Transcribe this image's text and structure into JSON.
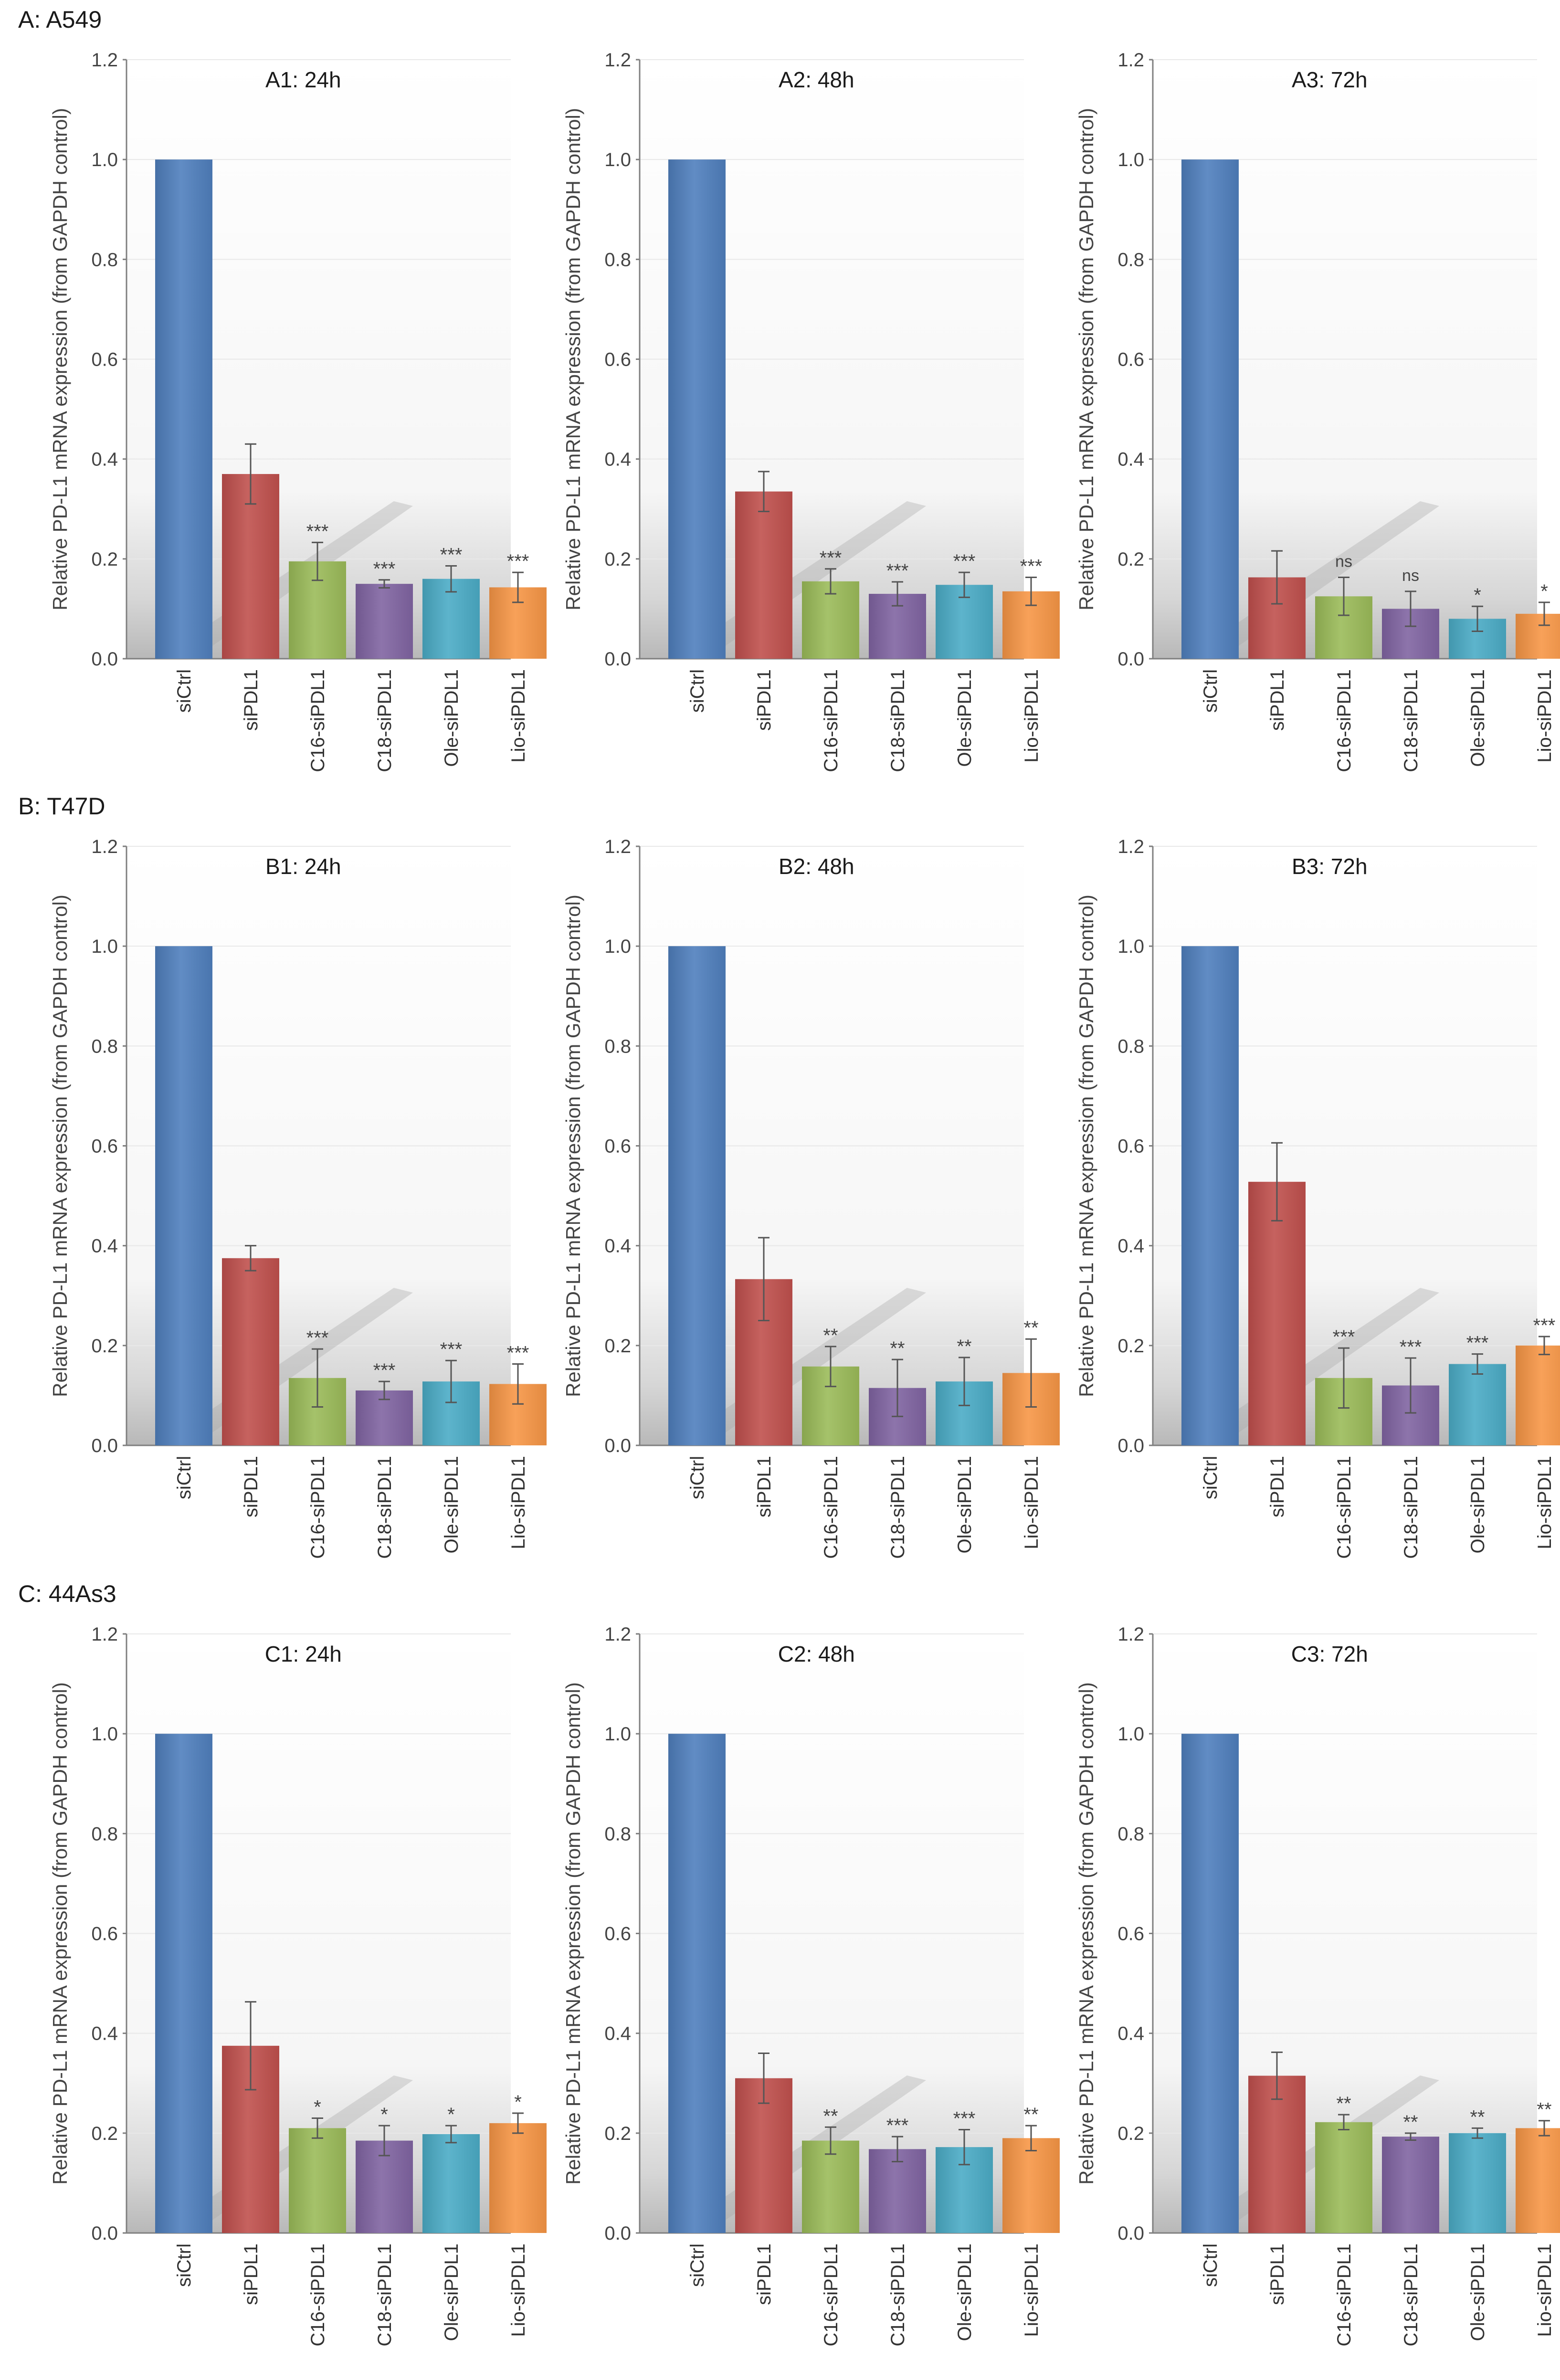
{
  "section_labels": [
    "A: A549",
    "B: T47D",
    "C: 44As3"
  ],
  "colors": {
    "siCtrl": "#4f7fbd",
    "siPDL1": "#c0504d",
    "C16-siPDL1": "#9bbb59",
    "C18-siPDL1": "#8064a2",
    "Ole-siPDL1": "#4bacc6",
    "Lio-siPDL1": "#f79646"
  },
  "chart_data": [
    {
      "type": "bar",
      "title": "A1: 24h",
      "ylabel": "Relative PD-L1 mRNA expression  (from GAPDH control)",
      "ylim": [
        0,
        1.2
      ],
      "yticks": [
        "0.0",
        "0.2",
        "0.4",
        "0.6",
        "0.8",
        "1.0",
        "1.2"
      ],
      "categories": [
        "siCtrl",
        "siPDL1",
        "C16-siPDL1",
        "C18-siPDL1",
        "Ole-siPDL1",
        "Lio-siPDL1"
      ],
      "values": [
        1.0,
        0.37,
        0.195,
        0.15,
        0.16,
        0.143
      ],
      "errors": [
        0,
        0.06,
        0.038,
        0.008,
        0.026,
        0.03
      ],
      "significance": [
        "",
        "",
        "***",
        "***",
        "***",
        "***"
      ]
    },
    {
      "type": "bar",
      "title": "A2: 48h",
      "ylabel": "Relative PD-L1 mRNA expression  (from GAPDH control)",
      "ylim": [
        0,
        1.2
      ],
      "yticks": [
        "0.0",
        "0.2",
        "0.4",
        "0.6",
        "0.8",
        "1.0",
        "1.2"
      ],
      "categories": [
        "siCtrl",
        "siPDL1",
        "C16-siPDL1",
        "C18-siPDL1",
        "Ole-siPDL1",
        "Lio-siPDL1"
      ],
      "values": [
        1.0,
        0.335,
        0.155,
        0.13,
        0.148,
        0.135
      ],
      "errors": [
        0,
        0.04,
        0.025,
        0.024,
        0.025,
        0.028
      ],
      "significance": [
        "",
        "",
        "***",
        "***",
        "***",
        "***"
      ]
    },
    {
      "type": "bar",
      "title": "A3: 72h",
      "ylabel": "Relative PD-L1 mRNA expression  (from GAPDH control)",
      "ylim": [
        0,
        1.2
      ],
      "yticks": [
        "0.0",
        "0.2",
        "0.4",
        "0.6",
        "0.8",
        "1.0",
        "1.2"
      ],
      "categories": [
        "siCtrl",
        "siPDL1",
        "C16-siPDL1",
        "C18-siPDL1",
        "Ole-siPDL1",
        "Lio-siPDL1"
      ],
      "values": [
        1.0,
        0.163,
        0.125,
        0.1,
        0.08,
        0.09
      ],
      "errors": [
        0,
        0.053,
        0.038,
        0.035,
        0.025,
        0.023
      ],
      "significance": [
        "",
        "",
        "ns",
        "ns",
        "*",
        "*"
      ]
    },
    {
      "type": "bar",
      "title": "B1: 24h",
      "ylabel": "Relative PD-L1 mRNA expression  (from GAPDH control)",
      "ylim": [
        0,
        1.2
      ],
      "yticks": [
        "0.0",
        "0.2",
        "0.4",
        "0.6",
        "0.8",
        "1.0",
        "1.2"
      ],
      "categories": [
        "siCtrl",
        "siPDL1",
        "C16-siPDL1",
        "C18-siPDL1",
        "Ole-siPDL1",
        "Lio-siPDL1"
      ],
      "values": [
        1.0,
        0.375,
        0.135,
        0.11,
        0.128,
        0.123
      ],
      "errors": [
        0,
        0.025,
        0.058,
        0.018,
        0.042,
        0.04
      ],
      "significance": [
        "",
        "",
        "***",
        "***",
        "***",
        "***"
      ]
    },
    {
      "type": "bar",
      "title": "B2: 48h",
      "ylabel": "Relative PD-L1 mRNA expression  (from GAPDH control)",
      "ylim": [
        0,
        1.2
      ],
      "yticks": [
        "0.0",
        "0.2",
        "0.4",
        "0.6",
        "0.8",
        "1.0",
        "1.2"
      ],
      "categories": [
        "siCtrl",
        "siPDL1",
        "C16-siPDL1",
        "C18-siPDL1",
        "Ole-siPDL1",
        "Lio-siPDL1"
      ],
      "values": [
        1.0,
        0.333,
        0.158,
        0.115,
        0.128,
        0.145
      ],
      "errors": [
        0,
        0.083,
        0.04,
        0.057,
        0.048,
        0.068
      ],
      "significance": [
        "",
        "",
        "**",
        "**",
        "**",
        "**"
      ]
    },
    {
      "type": "bar",
      "title": "B3: 72h",
      "ylabel": "Relative PD-L1 mRNA expression  (from GAPDH control)",
      "ylim": [
        0,
        1.2
      ],
      "yticks": [
        "0.0",
        "0.2",
        "0.4",
        "0.6",
        "0.8",
        "1.0",
        "1.2"
      ],
      "categories": [
        "siCtrl",
        "siPDL1",
        "C16-siPDL1",
        "C18-siPDL1",
        "Ole-siPDL1",
        "Lio-siPDL1"
      ],
      "values": [
        1.0,
        0.528,
        0.135,
        0.12,
        0.163,
        0.2
      ],
      "errors": [
        0,
        0.078,
        0.06,
        0.055,
        0.02,
        0.018
      ],
      "significance": [
        "",
        "",
        "***",
        "***",
        "***",
        "***"
      ]
    },
    {
      "type": "bar",
      "title": "C1: 24h",
      "ylabel": "Relative PD-L1 mRNA expression  (from GAPDH control)",
      "ylim": [
        0,
        1.2
      ],
      "yticks": [
        "0.0",
        "0.2",
        "0.4",
        "0.6",
        "0.8",
        "1.0",
        "1.2"
      ],
      "categories": [
        "siCtrl",
        "siPDL1",
        "C16-siPDL1",
        "C18-siPDL1",
        "Ole-siPDL1",
        "Lio-siPDL1"
      ],
      "values": [
        1.0,
        0.375,
        0.21,
        0.185,
        0.198,
        0.22
      ],
      "errors": [
        0,
        0.088,
        0.02,
        0.03,
        0.017,
        0.02
      ],
      "significance": [
        "",
        "",
        "*",
        "*",
        "*",
        "*"
      ]
    },
    {
      "type": "bar",
      "title": "C2: 48h",
      "ylabel": "Relative PD-L1 mRNA expression  (from GAPDH control)",
      "ylim": [
        0,
        1.2
      ],
      "yticks": [
        "0.0",
        "0.2",
        "0.4",
        "0.6",
        "0.8",
        "1.0",
        "1.2"
      ],
      "categories": [
        "siCtrl",
        "siPDL1",
        "C16-siPDL1",
        "C18-siPDL1",
        "Ole-siPDL1",
        "Lio-siPDL1"
      ],
      "values": [
        1.0,
        0.31,
        0.185,
        0.168,
        0.172,
        0.19
      ],
      "errors": [
        0,
        0.05,
        0.027,
        0.025,
        0.035,
        0.025
      ],
      "significance": [
        "",
        "",
        "**",
        "***",
        "***",
        "**"
      ]
    },
    {
      "type": "bar",
      "title": "C3: 72h",
      "ylabel": "Relative PD-L1 mRNA expression  (from GAPDH control)",
      "ylim": [
        0,
        1.2
      ],
      "yticks": [
        "0.0",
        "0.2",
        "0.4",
        "0.6",
        "0.8",
        "1.0",
        "1.2"
      ],
      "categories": [
        "siCtrl",
        "siPDL1",
        "C16-siPDL1",
        "C18-siPDL1",
        "Ole-siPDL1",
        "Lio-siPDL1"
      ],
      "values": [
        1.0,
        0.315,
        0.222,
        0.193,
        0.2,
        0.21
      ],
      "errors": [
        0,
        0.047,
        0.015,
        0.007,
        0.01,
        0.015
      ],
      "significance": [
        "",
        "",
        "**",
        "**",
        "**",
        "**"
      ]
    }
  ]
}
